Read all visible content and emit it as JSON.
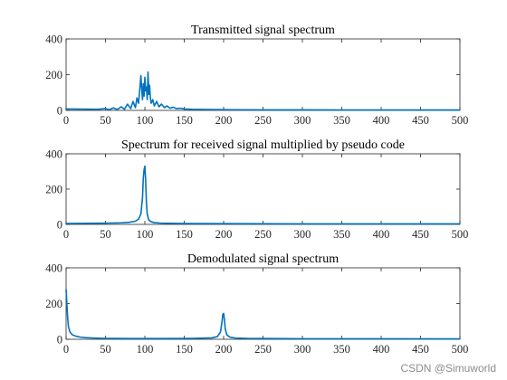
{
  "watermark": "CSDN @Simuworld",
  "colors": {
    "line": "#0072BD",
    "axis": "#262626",
    "background": "#ffffff"
  },
  "chart_data": [
    {
      "type": "line",
      "title": "Transmitted signal spectrum",
      "xlim": [
        0,
        500
      ],
      "ylim": [
        0,
        400
      ],
      "xticks": [
        0,
        50,
        100,
        150,
        200,
        250,
        300,
        350,
        400,
        450,
        500
      ],
      "yticks": [
        0,
        200,
        400
      ],
      "grid": false,
      "series": [
        {
          "x": [
            0,
            40,
            50,
            55,
            60,
            65,
            70,
            74,
            78,
            82,
            85,
            88,
            90,
            92,
            94,
            95,
            96,
            97,
            98,
            99,
            100,
            101,
            102,
            103,
            104,
            105,
            106,
            107,
            108,
            110,
            112,
            115,
            118,
            121,
            125,
            128,
            132,
            136,
            140,
            145,
            150,
            160,
            180,
            200,
            250,
            300,
            400,
            500
          ],
          "y": [
            8,
            6,
            10,
            4,
            14,
            5,
            20,
            6,
            35,
            10,
            50,
            15,
            70,
            40,
            140,
            195,
            120,
            60,
            150,
            80,
            185,
            110,
            130,
            60,
            215,
            90,
            140,
            70,
            40,
            60,
            25,
            50,
            20,
            35,
            15,
            25,
            12,
            18,
            10,
            12,
            8,
            6,
            5,
            4,
            3,
            3,
            2,
            2
          ]
        }
      ]
    },
    {
      "type": "line",
      "title": "Spectrum for received signal multiplied by pseudo code",
      "xlim": [
        0,
        500
      ],
      "ylim": [
        0,
        400
      ],
      "xticks": [
        0,
        50,
        100,
        150,
        200,
        250,
        300,
        350,
        400,
        450,
        500
      ],
      "yticks": [
        0,
        200,
        400
      ],
      "grid": false,
      "series": [
        {
          "x": [
            0,
            30,
            50,
            70,
            80,
            88,
            92,
            95,
            97,
            98,
            99,
            100,
            101,
            102,
            103,
            105,
            108,
            112,
            120,
            150,
            200,
            300,
            400,
            500
          ],
          "y": [
            5,
            6,
            7,
            9,
            12,
            18,
            30,
            60,
            150,
            260,
            310,
            330,
            250,
            120,
            60,
            25,
            15,
            10,
            7,
            5,
            4,
            3,
            3,
            3
          ]
        }
      ]
    },
    {
      "type": "line",
      "title": "Demodulated signal spectrum",
      "xlim": [
        0,
        500
      ],
      "ylim": [
        0,
        400
      ],
      "xticks": [
        0,
        50,
        100,
        150,
        200,
        250,
        300,
        350,
        400,
        450,
        500
      ],
      "yticks": [
        0,
        200,
        400
      ],
      "grid": false,
      "series": [
        {
          "x": [
            0,
            1,
            2,
            3,
            5,
            8,
            12,
            18,
            25,
            35,
            50,
            80,
            120,
            160,
            185,
            192,
            196,
            198,
            199,
            200,
            201,
            202,
            204,
            208,
            215,
            230,
            260,
            300,
            400,
            500
          ],
          "y": [
            280,
            200,
            120,
            70,
            40,
            25,
            18,
            12,
            9,
            7,
            5,
            4,
            4,
            5,
            8,
            15,
            40,
            100,
            140,
            145,
            110,
            60,
            25,
            12,
            7,
            5,
            4,
            3,
            3,
            2
          ]
        }
      ]
    }
  ]
}
